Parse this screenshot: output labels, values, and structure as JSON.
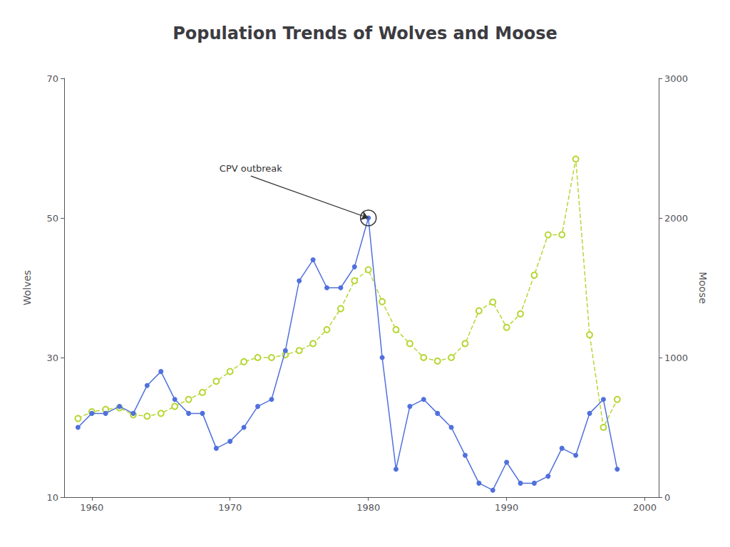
{
  "chart_data": {
    "type": "line",
    "title": "Population Trends of Wolves and Moose",
    "x": [
      1959,
      1960,
      1961,
      1962,
      1963,
      1964,
      1965,
      1966,
      1967,
      1968,
      1969,
      1970,
      1971,
      1972,
      1973,
      1974,
      1975,
      1976,
      1977,
      1978,
      1979,
      1980,
      1981,
      1982,
      1983,
      1984,
      1985,
      1986,
      1987,
      1988,
      1989,
      1990,
      1991,
      1992,
      1993,
      1994,
      1995,
      1996,
      1997,
      1998
    ],
    "series": [
      {
        "name": "Wolves",
        "marker": "circle",
        "line_style": "solid",
        "values": [
          20,
          22,
          22,
          23,
          22,
          26,
          28,
          24,
          22,
          22,
          17,
          18,
          20,
          23,
          24,
          31,
          41,
          44,
          40,
          40,
          43,
          50,
          30,
          14,
          23,
          24,
          22,
          20,
          16,
          12,
          11,
          15,
          12,
          12,
          13,
          17,
          16,
          22,
          24,
          14
        ]
      },
      {
        "name": "Moose",
        "axis": "y2",
        "marker": "open_circle",
        "line_style": "dashed",
        "values": [
          563,
          612,
          628,
          640,
          590,
          580,
          600,
          650,
          700,
          750,
          830,
          900,
          970,
          1000,
          1000,
          1020,
          1050,
          1100,
          1200,
          1350,
          1550,
          1629,
          1400,
          1200,
          1100,
          1000,
          975,
          1000,
          1100,
          1335,
          1397,
          1216,
          1313,
          1590,
          1879,
          1880,
          2422,
          1163,
          500,
          700
        ]
      }
    ],
    "ylabel": "Wolves",
    "y2label": "Moose",
    "xlim": [
      1958,
      2001
    ],
    "xticks": [
      1960,
      1970,
      1980,
      1990,
      2000
    ],
    "ylim": [
      10,
      70
    ],
    "yticks": [
      10,
      30,
      50,
      70
    ],
    "y2lim": [
      0,
      3000
    ],
    "y2ticks": [
      0,
      1000,
      2000,
      3000
    ],
    "grid": false,
    "annotations": [
      {
        "text": "CPV outbreak",
        "x": 1980,
        "y": 50,
        "text_x": 1971.5,
        "text_y": 56
      }
    ]
  }
}
